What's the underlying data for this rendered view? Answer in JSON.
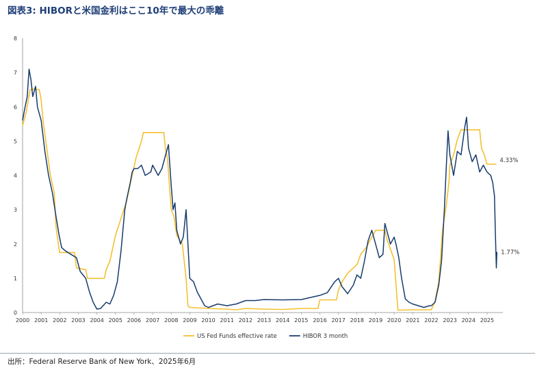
{
  "title": "図表3: HIBORと米国金利はここ10年で最大の乖離",
  "source": "出所：Federal Reserve Bank of New York、2025年6月",
  "colors": {
    "us_ffr": "#f4c02f",
    "hibor": "#163a6e",
    "title": "#1f3f77"
  },
  "chart_data": {
    "type": "line",
    "title": "",
    "xlabel": "",
    "ylabel": "",
    "xlim": [
      2000,
      2025.85
    ],
    "ylim": [
      0,
      8
    ],
    "y_ticks": [
      "0",
      "1",
      "2",
      "3",
      "4",
      "5",
      "6",
      "7",
      "8"
    ],
    "x_ticks": [
      "2000",
      "2001",
      "2002",
      "2003",
      "2004",
      "2005",
      "2006",
      "2007",
      "2008",
      "2009",
      "2010",
      "2011",
      "2012",
      "2013",
      "2014",
      "2015",
      "2016",
      "2017",
      "2018",
      "2019",
      "2020",
      "2021",
      "2022",
      "2023",
      "2024",
      "2025"
    ],
    "grid": false,
    "legend_position": "bottom-center",
    "series": [
      {
        "name": "US Fed Funds effective rate",
        "color": "#f4c02f",
        "end_label": "4.33%",
        "points": [
          [
            2000.0,
            5.45
          ],
          [
            2000.2,
            5.85
          ],
          [
            2000.4,
            6.5
          ],
          [
            2000.6,
            6.52
          ],
          [
            2000.9,
            6.5
          ],
          [
            2001.0,
            6.2
          ],
          [
            2001.1,
            5.6
          ],
          [
            2001.3,
            4.8
          ],
          [
            2001.5,
            4.0
          ],
          [
            2001.7,
            3.5
          ],
          [
            2001.8,
            2.5
          ],
          [
            2001.95,
            1.9
          ],
          [
            2002.0,
            1.75
          ],
          [
            2002.8,
            1.75
          ],
          [
            2002.9,
            1.3
          ],
          [
            2003.4,
            1.25
          ],
          [
            2003.5,
            1.0
          ],
          [
            2004.4,
            1.0
          ],
          [
            2004.5,
            1.25
          ],
          [
            2004.7,
            1.5
          ],
          [
            2004.9,
            2.0
          ],
          [
            2005.0,
            2.25
          ],
          [
            2005.3,
            2.75
          ],
          [
            2005.6,
            3.25
          ],
          [
            2005.9,
            4.0
          ],
          [
            2006.1,
            4.5
          ],
          [
            2006.4,
            5.0
          ],
          [
            2006.5,
            5.25
          ],
          [
            2007.6,
            5.25
          ],
          [
            2007.7,
            4.75
          ],
          [
            2007.8,
            4.5
          ],
          [
            2008.0,
            3.0
          ],
          [
            2008.15,
            2.8
          ],
          [
            2008.3,
            2.25
          ],
          [
            2008.6,
            2.0
          ],
          [
            2008.8,
            1.0
          ],
          [
            2008.9,
            0.2
          ],
          [
            2009.0,
            0.15
          ],
          [
            2010.0,
            0.12
          ],
          [
            2011.0,
            0.1
          ],
          [
            2011.5,
            0.08
          ],
          [
            2012.0,
            0.12
          ],
          [
            2013.0,
            0.1
          ],
          [
            2014.0,
            0.09
          ],
          [
            2015.0,
            0.12
          ],
          [
            2015.9,
            0.12
          ],
          [
            2016.0,
            0.37
          ],
          [
            2016.9,
            0.37
          ],
          [
            2017.0,
            0.66
          ],
          [
            2017.2,
            0.9
          ],
          [
            2017.5,
            1.15
          ],
          [
            2018.0,
            1.4
          ],
          [
            2018.2,
            1.7
          ],
          [
            2018.5,
            1.9
          ],
          [
            2018.8,
            2.2
          ],
          [
            2019.0,
            2.4
          ],
          [
            2019.5,
            2.4
          ],
          [
            2019.6,
            2.15
          ],
          [
            2019.8,
            1.85
          ],
          [
            2020.0,
            1.55
          ],
          [
            2020.2,
            0.07
          ],
          [
            2021.0,
            0.08
          ],
          [
            2022.0,
            0.08
          ],
          [
            2022.2,
            0.33
          ],
          [
            2022.4,
            0.9
          ],
          [
            2022.5,
            1.6
          ],
          [
            2022.6,
            2.4
          ],
          [
            2022.8,
            3.1
          ],
          [
            2022.95,
            3.8
          ],
          [
            2023.0,
            4.3
          ],
          [
            2023.2,
            4.6
          ],
          [
            2023.4,
            5.05
          ],
          [
            2023.6,
            5.33
          ],
          [
            2024.6,
            5.33
          ],
          [
            2024.7,
            4.8
          ],
          [
            2024.85,
            4.6
          ],
          [
            2025.0,
            4.33
          ],
          [
            2025.5,
            4.33
          ]
        ]
      },
      {
        "name": "HIBOR 3 month",
        "color": "#163a6e",
        "end_label": "1.77%",
        "points": [
          [
            2000.0,
            5.6
          ],
          [
            2000.1,
            5.9
          ],
          [
            2000.25,
            6.3
          ],
          [
            2000.35,
            7.1
          ],
          [
            2000.45,
            6.8
          ],
          [
            2000.55,
            6.3
          ],
          [
            2000.7,
            6.6
          ],
          [
            2000.8,
            6.0
          ],
          [
            2001.0,
            5.6
          ],
          [
            2001.2,
            4.7
          ],
          [
            2001.4,
            4.0
          ],
          [
            2001.6,
            3.5
          ],
          [
            2001.8,
            2.8
          ],
          [
            2001.95,
            2.3
          ],
          [
            2002.1,
            1.9
          ],
          [
            2002.3,
            1.8
          ],
          [
            2002.6,
            1.7
          ],
          [
            2002.9,
            1.6
          ],
          [
            2003.1,
            1.2
          ],
          [
            2003.4,
            1.0
          ],
          [
            2003.6,
            0.6
          ],
          [
            2003.8,
            0.3
          ],
          [
            2004.0,
            0.1
          ],
          [
            2004.2,
            0.12
          ],
          [
            2004.5,
            0.3
          ],
          [
            2004.7,
            0.25
          ],
          [
            2004.9,
            0.5
          ],
          [
            2005.1,
            0.9
          ],
          [
            2005.3,
            1.8
          ],
          [
            2005.5,
            3.0
          ],
          [
            2005.6,
            3.3
          ],
          [
            2005.8,
            3.8
          ],
          [
            2005.9,
            4.1
          ],
          [
            2006.0,
            4.2
          ],
          [
            2006.2,
            4.2
          ],
          [
            2006.4,
            4.3
          ],
          [
            2006.6,
            4.0
          ],
          [
            2006.9,
            4.1
          ],
          [
            2007.0,
            4.3
          ],
          [
            2007.2,
            4.1
          ],
          [
            2007.3,
            4.0
          ],
          [
            2007.5,
            4.2
          ],
          [
            2007.7,
            4.6
          ],
          [
            2007.85,
            4.9
          ],
          [
            2008.0,
            3.7
          ],
          [
            2008.1,
            3.0
          ],
          [
            2008.2,
            3.2
          ],
          [
            2008.3,
            2.4
          ],
          [
            2008.5,
            2.0
          ],
          [
            2008.65,
            2.2
          ],
          [
            2008.8,
            3.0
          ],
          [
            2008.9,
            2.0
          ],
          [
            2009.0,
            1.0
          ],
          [
            2009.2,
            0.9
          ],
          [
            2009.4,
            0.6
          ],
          [
            2009.6,
            0.4
          ],
          [
            2009.8,
            0.2
          ],
          [
            2010.0,
            0.15
          ],
          [
            2010.5,
            0.25
          ],
          [
            2011.0,
            0.2
          ],
          [
            2011.5,
            0.25
          ],
          [
            2012.0,
            0.35
          ],
          [
            2012.5,
            0.35
          ],
          [
            2013.0,
            0.38
          ],
          [
            2014.0,
            0.37
          ],
          [
            2015.0,
            0.38
          ],
          [
            2016.0,
            0.5
          ],
          [
            2016.4,
            0.58
          ],
          [
            2016.8,
            0.9
          ],
          [
            2017.0,
            1.0
          ],
          [
            2017.2,
            0.75
          ],
          [
            2017.5,
            0.55
          ],
          [
            2017.8,
            0.8
          ],
          [
            2018.0,
            1.1
          ],
          [
            2018.2,
            1.0
          ],
          [
            2018.4,
            1.5
          ],
          [
            2018.6,
            2.1
          ],
          [
            2018.8,
            2.4
          ],
          [
            2019.0,
            2.0
          ],
          [
            2019.2,
            1.6
          ],
          [
            2019.4,
            1.7
          ],
          [
            2019.5,
            2.6
          ],
          [
            2019.6,
            2.4
          ],
          [
            2019.8,
            2.0
          ],
          [
            2020.0,
            2.2
          ],
          [
            2020.1,
            2.0
          ],
          [
            2020.25,
            1.6
          ],
          [
            2020.4,
            1.0
          ],
          [
            2020.6,
            0.4
          ],
          [
            2020.8,
            0.3
          ],
          [
            2021.0,
            0.25
          ],
          [
            2021.3,
            0.2
          ],
          [
            2021.6,
            0.15
          ],
          [
            2021.9,
            0.2
          ],
          [
            2022.0,
            0.2
          ],
          [
            2022.2,
            0.3
          ],
          [
            2022.4,
            0.8
          ],
          [
            2022.55,
            1.5
          ],
          [
            2022.7,
            3.0
          ],
          [
            2022.8,
            4.2
          ],
          [
            2022.9,
            5.3
          ],
          [
            2023.0,
            4.6
          ],
          [
            2023.2,
            4.0
          ],
          [
            2023.4,
            4.7
          ],
          [
            2023.6,
            4.6
          ],
          [
            2023.8,
            5.4
          ],
          [
            2023.9,
            5.7
          ],
          [
            2024.0,
            4.8
          ],
          [
            2024.2,
            4.4
          ],
          [
            2024.4,
            4.6
          ],
          [
            2024.6,
            4.1
          ],
          [
            2024.8,
            4.3
          ],
          [
            2025.0,
            4.1
          ],
          [
            2025.2,
            4.0
          ],
          [
            2025.3,
            3.8
          ],
          [
            2025.4,
            3.4
          ],
          [
            2025.45,
            2.3
          ],
          [
            2025.5,
            1.3
          ],
          [
            2025.53,
            1.77
          ]
        ]
      }
    ]
  }
}
